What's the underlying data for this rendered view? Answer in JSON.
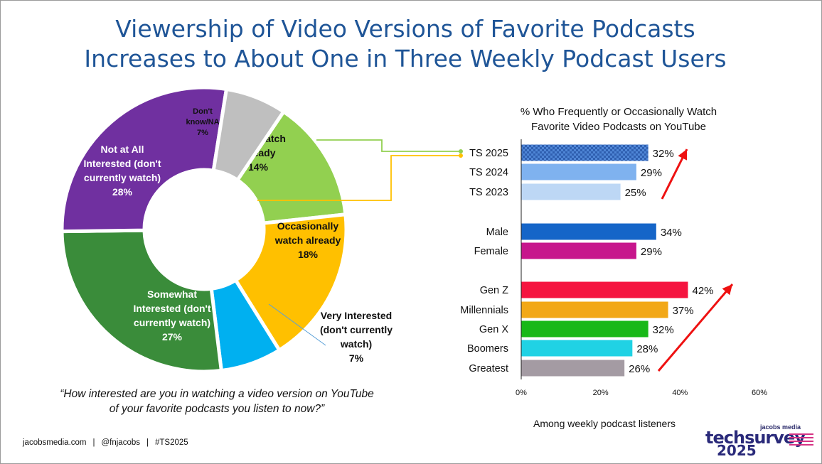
{
  "title_lines": [
    "Viewership of Video Versions of Favorite Podcasts",
    "Increases to About One in Three Weekly Podcast Users"
  ],
  "question": "“How interested are you in watching a video version on YouTube of your favorite podcasts you listen to now?”",
  "footer": {
    "site": "jacobsmedia.com",
    "handle": "@fnjacobs",
    "tag": "#TS2025"
  },
  "logo": {
    "brand": "jacobs media",
    "name": "techsurvey",
    "year": "2025"
  },
  "colors": {
    "title": "#1f5597",
    "arrow": "#ee1111"
  },
  "chart_data": [
    {
      "type": "pie",
      "variant": "donut",
      "slices": [
        {
          "label_lines": [
            "Freq. watch",
            "already"
          ],
          "value": 14,
          "value_label": "14%",
          "color": "#92d050"
        },
        {
          "label_lines": [
            "Occasionally",
            "watch already"
          ],
          "value": 18,
          "value_label": "18%",
          "color": "#ffc000"
        },
        {
          "label_lines": [
            "Very Interested",
            "(don't currently",
            "watch)"
          ],
          "value": 7,
          "value_label": "7%",
          "color": "#00b0f0"
        },
        {
          "label_lines": [
            "Somewhat",
            "Interested (don't",
            "currently watch)"
          ],
          "value": 27,
          "value_label": "27%",
          "color": "#3a8c3a"
        },
        {
          "label_lines": [
            "Not at All",
            "Interested (don't",
            "currently watch)"
          ],
          "value": 28,
          "value_label": "28%",
          "color": "#7030a0"
        },
        {
          "label_lines": [
            "Don't",
            "know/NA"
          ],
          "value": 7,
          "value_label": "7%",
          "color": "#bfbfbf"
        }
      ]
    },
    {
      "type": "bar",
      "orientation": "horizontal",
      "title_lines": [
        "% Who Frequently or Occasionally Watch",
        "Favorite Video Podcasts on YouTube"
      ],
      "note": "Among weekly podcast listeners",
      "xlim": [
        0,
        60
      ],
      "ticks": [
        0,
        20,
        40,
        60
      ],
      "tick_labels": [
        "0%",
        "20%",
        "40%",
        "60%"
      ],
      "groups": [
        [
          {
            "category": "TS 2025",
            "value": 32,
            "value_label": "32%",
            "color": "#4f86d6",
            "pattern": "checker"
          },
          {
            "category": "TS 2024",
            "value": 29,
            "value_label": "29%",
            "color": "#7fb2ef"
          },
          {
            "category": "TS 2023",
            "value": 25,
            "value_label": "25%",
            "color": "#bdd7f5"
          }
        ],
        [
          {
            "category": "Male",
            "value": 34,
            "value_label": "34%",
            "color": "#1565c8"
          },
          {
            "category": "Female",
            "value": 29,
            "value_label": "29%",
            "color": "#c7168c"
          }
        ],
        [
          {
            "category": "Gen Z",
            "value": 42,
            "value_label": "42%",
            "color": "#f5143f"
          },
          {
            "category": "Millennials",
            "value": 37,
            "value_label": "37%",
            "color": "#f2a817"
          },
          {
            "category": "Gen X",
            "value": 32,
            "value_label": "32%",
            "color": "#18b818"
          },
          {
            "category": "Boomers",
            "value": 28,
            "value_label": "28%",
            "color": "#20d2e4"
          },
          {
            "category": "Greatest",
            "value": 26,
            "value_label": "26%",
            "color": "#a49ba3"
          }
        ]
      ]
    }
  ]
}
